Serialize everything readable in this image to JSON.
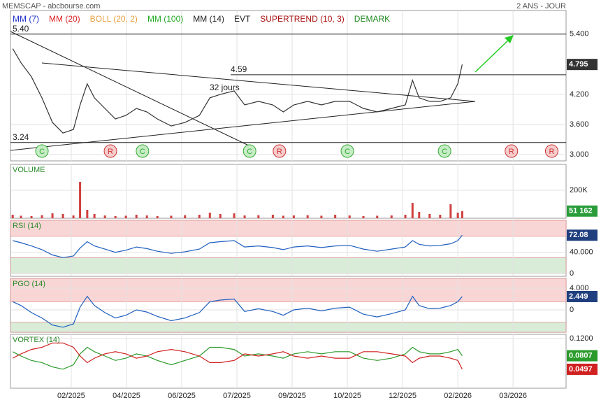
{
  "chart_data": [
    {
      "type": "line",
      "title": "MEMSCAP - abcbourse.com",
      "subtitle": "2 ANS - JOUR",
      "indicators": [
        {
          "name": "MM (7)",
          "color": "#2233cc"
        },
        {
          "name": "MM (20)",
          "color": "#dd2222"
        },
        {
          "name": "BOLL (20, 2)",
          "color": "#e8a040"
        },
        {
          "name": "MM (100)",
          "color": "#22aa22"
        },
        {
          "name": "MM (14)",
          "color": "#222222"
        },
        {
          "name": "EVT",
          "color": "#222222"
        },
        {
          "name": "SUPERTREND (10, 3)",
          "color": "#aa1111"
        },
        {
          "name": "DEMARK",
          "color": "#228822"
        }
      ],
      "x": [
        -1.06,
        -0.91,
        -0.72,
        -0.53,
        -0.34,
        -0.15,
        0.04,
        0.16,
        0.29,
        0.42,
        0.61,
        0.8,
        0.99,
        1.18,
        1.37,
        1.56,
        1.81,
        2.06,
        2.32,
        2.51,
        2.7,
        2.95,
        3.14,
        3.39,
        3.65,
        3.84,
        4.03,
        4.28,
        4.53,
        4.78,
        5.04,
        5.29,
        5.54,
        5.8,
        6.05,
        6.18,
        6.3,
        6.49,
        6.68,
        6.87,
        7.0,
        7.08
      ],
      "series": [
        {
          "color": "#333333",
          "values": [
            5.11,
            4.83,
            4.55,
            4.13,
            3.64,
            3.43,
            3.5,
            3.99,
            4.41,
            4.13,
            3.92,
            3.71,
            3.78,
            3.92,
            3.85,
            3.71,
            3.57,
            3.64,
            3.78,
            4.13,
            4.2,
            4.27,
            3.99,
            4.06,
            3.99,
            3.85,
            3.99,
            4.06,
            3.99,
            4.06,
            4.06,
            3.92,
            3.85,
            3.92,
            3.99,
            4.48,
            4.13,
            4.06,
            4.06,
            4.13,
            4.41,
            4.795
          ]
        }
      ],
      "xlim": [
        -1.1,
        8.96
      ],
      "xticks": [
        {
          "value": 0,
          "label": "02/2025"
        },
        {
          "value": 1,
          "label": "04/2025"
        },
        {
          "value": 2,
          "label": "06/2025"
        },
        {
          "value": 3,
          "label": "07/2025"
        },
        {
          "value": 4,
          "label": "09/2025"
        },
        {
          "value": 5,
          "label": "10/2025"
        },
        {
          "value": 6,
          "label": "12/2025"
        },
        {
          "value": 7,
          "label": "02/2026"
        },
        {
          "value": 8,
          "label": "03/2026"
        }
      ],
      "ylim": [
        2.875,
        5.87
      ],
      "yticks": [
        {
          "value": 5.4,
          "label": "5.400"
        },
        {
          "value": 4.2,
          "label": "4.200"
        },
        {
          "value": 3.6,
          "label": "3.600"
        },
        {
          "value": 3,
          "label": "3.000"
        }
      ],
      "levels": [
        {
          "value": 5.4,
          "label": "5.40"
        },
        {
          "value": 4.59,
          "label": "4.59"
        },
        {
          "value": 3.24,
          "label": "3.24"
        }
      ],
      "annotation": "32 jours",
      "signals": [
        {
          "label": "C",
          "x": -0.53,
          "color": "#33aa33"
        },
        {
          "label": "R",
          "x": 0.71,
          "color": "#cc3333"
        },
        {
          "label": "C",
          "x": 1.29,
          "color": "#33aa33"
        },
        {
          "label": "C",
          "x": 3.23,
          "color": "#33aa33"
        },
        {
          "label": "R",
          "x": 3.77,
          "color": "#cc3333"
        },
        {
          "label": "C",
          "x": 5.0,
          "color": "#33aa33"
        },
        {
          "label": "C",
          "x": 6.76,
          "color": "#33aa33"
        },
        {
          "label": "R",
          "x": 7.97,
          "color": "#cc3333"
        },
        {
          "label": "R",
          "x": 8.7,
          "color": "#cc3333"
        }
      ]
    },
    {
      "type": "bar",
      "title": "VOLUME",
      "color": "#d04040",
      "values": [
        25000,
        18000,
        15000,
        22000,
        35000,
        30000,
        20000,
        260000,
        60000,
        30000,
        20000,
        15000,
        18000,
        25000,
        20000,
        15000,
        18000,
        22000,
        25000,
        40000,
        30000,
        35000,
        20000,
        22000,
        25000,
        18000,
        20000,
        22000,
        18000,
        25000,
        20000,
        15000,
        18000,
        20000,
        25000,
        110000,
        45000,
        30000,
        25000,
        100000,
        40000,
        51162
      ],
      "value_labels": {
        "41": "51 162"
      },
      "box_color": "#2a9d3a",
      "ylim": [
        0,
        385000
      ],
      "yticks": [
        {
          "value": 200000,
          "label": "200K"
        }
      ]
    },
    {
      "type": "line",
      "title": "RSI (14)",
      "series": [
        {
          "color": "#1f5fbf",
          "values": [
            62,
            58,
            52,
            45,
            35,
            30,
            33,
            48,
            60,
            52,
            46,
            40,
            44,
            50,
            47,
            42,
            38,
            41,
            46,
            58,
            60,
            62,
            50,
            52,
            49,
            45,
            50,
            52,
            49,
            52,
            53,
            46,
            42,
            46,
            50,
            62,
            55,
            52,
            53,
            56,
            62,
            72.08
          ]
        }
      ],
      "box_color": "#1f3f7f",
      "bands": [
        {
          "from": 70,
          "to": 100,
          "color": "#f9d6d6"
        },
        {
          "from": 0,
          "to": 30,
          "color": "#d8ecd8"
        }
      ],
      "ylim": [
        -5,
        100
      ],
      "yticks": [
        {
          "value": 40,
          "label": "40.000"
        },
        0
      ]
    },
    {
      "type": "line",
      "title": "PGO (14)",
      "series": [
        {
          "color": "#1f5fbf",
          "values": [
            1.5,
            0.8,
            -0.5,
            -1.5,
            -2.8,
            -3.2,
            -2.6,
            0.5,
            2.5,
            0.8,
            -0.5,
            -1.5,
            -1,
            0,
            -0.4,
            -1.2,
            -2,
            -1.5,
            -0.5,
            1.5,
            1.8,
            2,
            -0.3,
            0.2,
            -0.3,
            -1,
            0,
            0.3,
            -0.2,
            0.3,
            0.5,
            -0.8,
            -1.3,
            -0.7,
            0,
            2.5,
            0.8,
            0.2,
            0.3,
            0.8,
            1.5,
            2.449
          ]
        }
      ],
      "box_color": "#1f3f7f",
      "bands": [
        {
          "from": 1.5,
          "to": 5.8,
          "color": "#f9d6d6"
        },
        {
          "from": -4.13,
          "to": -2.3,
          "color": "#d8ecd8"
        }
      ],
      "ylim": [
        -4.13,
        5.8
      ],
      "yticks": [
        {
          "value": 4,
          "label": "4.000"
        },
        0
      ]
    },
    {
      "type": "line",
      "title": "VORTEX (14)",
      "series": [
        {
          "color": "#2a9a2a",
          "values": [
            0.09,
            0.08,
            0.07,
            0.065,
            0.055,
            0.05,
            0.06,
            0.085,
            0.1,
            0.09,
            0.08,
            0.07,
            0.075,
            0.085,
            0.08,
            0.07,
            0.06,
            0.07,
            0.08,
            0.1,
            0.1,
            0.095,
            0.08,
            0.085,
            0.08,
            0.075,
            0.085,
            0.09,
            0.085,
            0.09,
            0.09,
            0.075,
            0.07,
            0.075,
            0.085,
            0.1,
            0.09,
            0.085,
            0.085,
            0.09,
            0.095,
            0.0807
          ]
        },
        {
          "color": "#d02020",
          "values": [
            0.075,
            0.085,
            0.095,
            0.1,
            0.11,
            0.11,
            0.1,
            0.08,
            0.065,
            0.075,
            0.085,
            0.09,
            0.085,
            0.075,
            0.08,
            0.09,
            0.095,
            0.09,
            0.08,
            0.065,
            0.065,
            0.07,
            0.085,
            0.08,
            0.085,
            0.09,
            0.08,
            0.075,
            0.08,
            0.075,
            0.075,
            0.09,
            0.09,
            0.085,
            0.08,
            0.065,
            0.075,
            0.08,
            0.08,
            0.075,
            0.07,
            0.0497
          ]
        }
      ],
      "ylim": [
        0.0064,
        0.1296
      ],
      "yticks": [
        {
          "value": 0.12,
          "label": "0.1200"
        }
      ]
    }
  ]
}
